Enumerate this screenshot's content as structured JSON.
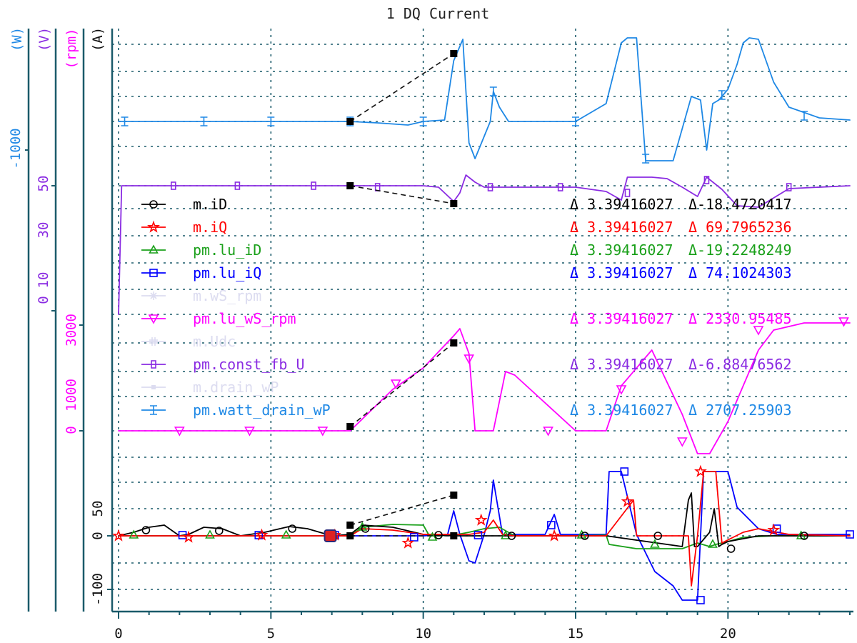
{
  "chart_data": {
    "type": "line",
    "title": "1 DQ Current",
    "x_ticks": [
      0,
      5,
      10,
      15,
      20
    ],
    "xlim": [
      0,
      24
    ],
    "grid": true,
    "axes": [
      {
        "unit": "(W)",
        "color": "#1e88e5",
        "tick_labels": [
          "-1000"
        ]
      },
      {
        "unit": "(V)",
        "color": "#8a2be2",
        "tick_labels": [
          "0",
          "10",
          "30",
          "50"
        ]
      },
      {
        "unit": "(rpm)",
        "color": "#ff00ff",
        "tick_labels": [
          "0",
          "1000",
          "3000"
        ]
      },
      {
        "unit": "(A)",
        "color": "#111111",
        "tick_labels": [
          "-100",
          "0",
          "50"
        ]
      }
    ],
    "legend": [
      {
        "name": "m.iD",
        "color": "#000000",
        "marker": "circle",
        "dx": "Δ 3.39416027",
        "dy": "Δ-18.4720417",
        "active": true
      },
      {
        "name": "m.iQ",
        "color": "#ff0000",
        "marker": "star",
        "dx": "Δ 3.39416027",
        "dy": "Δ 69.7965236",
        "active": true
      },
      {
        "name": "pm.lu_iD",
        "color": "#1aa01a",
        "marker": "triangle-up",
        "dx": "Δ 3.39416027",
        "dy": "Δ-19.2248249",
        "active": true
      },
      {
        "name": "pm.lu_iQ",
        "color": "#0000ff",
        "marker": "square",
        "dx": "Δ 3.39416027",
        "dy": "Δ 74.1024303",
        "active": true
      },
      {
        "name": "m.wS_rpm",
        "color": "#dcdcf0",
        "marker": "asterisk",
        "dx": "",
        "dy": "",
        "active": false
      },
      {
        "name": "pm.lu_wS_rpm",
        "color": "#ff00ff",
        "marker": "triangle-down",
        "dx": "Δ 3.39416027",
        "dy": "Δ 2330.95485",
        "active": true
      },
      {
        "name": "m.Udc",
        "color": "#dcdcf0",
        "marker": "hash",
        "dx": "",
        "dy": "",
        "active": false
      },
      {
        "name": "pm.const_fb_U",
        "color": "#8a2be2",
        "marker": "square-bar",
        "dx": "Δ 3.39416027",
        "dy": "Δ-6.88476562",
        "active": true
      },
      {
        "name": "m.drain_wP",
        "color": "#dcdcf0",
        "marker": "dot",
        "dx": "",
        "dy": "",
        "active": false
      },
      {
        "name": "pm.watt_drain_wP",
        "color": "#1e88e5",
        "marker": "errorbar",
        "dx": "Δ 3.39416027",
        "dy": "Δ 2707.25903",
        "active": true
      }
    ],
    "series": [
      {
        "name": "pm.watt_drain_wP",
        "x": [
          0,
          7.6,
          8.5,
          9.5,
          10,
          10.7,
          11,
          11.3,
          11.5,
          11.7,
          12.2,
          12.3,
          12.5,
          12.8,
          15,
          16,
          16.5,
          16.7,
          17,
          17.3,
          18.2,
          18.8,
          19.1,
          19.3,
          19.5,
          19.7,
          20,
          20.3,
          20.5,
          20.7,
          21,
          21.5,
          22,
          23,
          24
        ],
        "y": [
          170,
          170,
          172,
          175,
          170,
          168,
          85,
          55,
          200,
          222,
          170,
          128,
          150,
          170,
          170,
          145,
          60,
          53,
          53,
          225,
          225,
          135,
          140,
          210,
          145,
          140,
          125,
          90,
          60,
          53,
          55,
          115,
          150,
          165,
          168
        ]
      },
      {
        "name": "pm.const_fb_U",
        "x": [
          0,
          0.1,
          7.6,
          10,
          10.5,
          11,
          11.2,
          11.4,
          11.7,
          12,
          15,
          16,
          16.5,
          16.7,
          17.5,
          18,
          18.5,
          19,
          19.3,
          19.8,
          20.3,
          21,
          22,
          24
        ],
        "y": [
          440,
          260,
          260,
          260,
          262,
          282,
          270,
          245,
          255,
          262,
          262,
          268,
          280,
          248,
          248,
          250,
          262,
          275,
          248,
          265,
          288,
          290,
          264,
          260
        ]
      },
      {
        "name": "pm.lu_wS_rpm",
        "x": [
          0,
          7.6,
          9,
          10,
          11,
          11.2,
          11.5,
          11.7,
          12.3,
          12.7,
          13,
          15,
          16,
          16.5,
          17.5,
          18.5,
          19,
          19.4,
          20,
          21,
          21.5,
          22.5,
          24
        ],
        "y": [
          603,
          603,
          545,
          515,
          470,
          460,
          495,
          603,
          603,
          520,
          525,
          603,
          603,
          540,
          490,
          580,
          635,
          635,
          590,
          490,
          462,
          452,
          452
        ]
      },
      {
        "name": "pm.lu_iQ",
        "x": [
          0,
          7.5,
          9.8,
          10,
          10.8,
          11,
          11.2,
          11.5,
          11.7,
          12,
          12.2,
          12.3,
          12.6,
          14,
          14.3,
          14.5,
          16,
          16.1,
          16.5,
          17,
          17.6,
          18.2,
          18.5,
          18.8,
          19,
          19.2,
          20,
          20.3,
          21,
          21.6,
          22,
          24
        ],
        "y": [
          750,
          750,
          750,
          750,
          748,
          715,
          748,
          785,
          788,
          748,
          715,
          672,
          748,
          748,
          720,
          748,
          748,
          660,
          660,
          748,
          800,
          820,
          840,
          840,
          840,
          660,
          660,
          710,
          740,
          748,
          748,
          748
        ]
      },
      {
        "name": "pm.lu_iD",
        "x": [
          0,
          7.6,
          8,
          9,
          10,
          10.2,
          10.5,
          11,
          11.5,
          12,
          12.5,
          13,
          15,
          16,
          16.1,
          17,
          18,
          18.5,
          19,
          19.4,
          19.6,
          20,
          20.5,
          21.5,
          22,
          24
        ],
        "y": [
          750,
          750,
          738,
          734,
          735,
          750,
          750,
          749,
          745,
          740,
          738,
          750,
          750,
          749,
          762,
          768,
          768,
          768,
          760,
          765,
          762,
          758,
          752,
          750,
          750,
          750
        ]
      },
      {
        "name": "m.iD",
        "x": [
          0,
          0.5,
          1,
          1.5,
          2,
          2.3,
          2.8,
          3.4,
          4,
          4.8,
          5.6,
          6.2,
          7,
          7.6,
          8,
          9,
          10,
          11,
          12,
          16,
          18.5,
          18.7,
          18.8,
          18.9,
          19,
          19.4,
          19.55,
          19.7,
          19.8,
          20,
          21,
          24
        ],
        "y": [
          750,
          745,
          738,
          735,
          750,
          748,
          738,
          740,
          750,
          745,
          737,
          740,
          750,
          748,
          735,
          738,
          748,
          750,
          750,
          750,
          765,
          700,
          690,
          765,
          765,
          745,
          712,
          765,
          762,
          758,
          750,
          750
        ]
      },
      {
        "name": "m.iQ",
        "x": [
          0,
          7.6,
          8,
          9,
          10,
          11,
          11.5,
          12,
          12.3,
          12.6,
          13,
          16,
          16.9,
          17,
          17.5,
          18.7,
          18.8,
          19,
          19.2,
          19.3,
          19.6,
          19.8,
          20.5,
          21,
          22,
          24
        ],
        "y": [
          750,
          750,
          740,
          742,
          748,
          748,
          748,
          745,
          728,
          748,
          750,
          750,
          700,
          750,
          750,
          750,
          820,
          750,
          660,
          660,
          660,
          760,
          745,
          740,
          748,
          750
        ]
      }
    ],
    "markers": [
      {
        "series": "pm.watt_drain_wP",
        "x": [
          0.2,
          2.8,
          5,
          7.6,
          10,
          12.3,
          15,
          17.3,
          19.8,
          22.5
        ],
        "y": [
          170,
          170,
          170,
          170,
          170,
          128,
          170,
          222,
          133,
          162
        ]
      },
      {
        "series": "pm.const_fb_U",
        "x": [
          1.8,
          3.9,
          6.4,
          8.5,
          12.2,
          14.5,
          16.7,
          19.3,
          22
        ],
        "y": [
          260,
          260,
          260,
          262,
          262,
          262,
          270,
          252,
          262
        ]
      },
      {
        "series": "pm.lu_wS_rpm",
        "x": [
          2,
          4.3,
          6.7,
          9.1,
          11.5,
          14.1,
          16.5,
          18.5,
          21,
          23.8
        ],
        "y": [
          603,
          603,
          603,
          537,
          502,
          603,
          545,
          618,
          462,
          450
        ]
      },
      {
        "series": "pm.lu_iQ",
        "x": [
          2.1,
          4.6,
          7.1,
          9.7,
          11.8,
          14.2,
          16.6,
          19.1,
          21.6,
          24
        ],
        "y": [
          749,
          749,
          749,
          752,
          749,
          735,
          660,
          840,
          740,
          748
        ]
      },
      {
        "series": "pm.lu_iD",
        "x": [
          0.5,
          3,
          5.5,
          8,
          10.3,
          12.7,
          15.2,
          17.6,
          19.5,
          22.4
        ],
        "y": [
          749,
          749,
          749,
          738,
          752,
          750,
          749,
          762,
          762,
          750
        ]
      },
      {
        "series": "m.iD",
        "x": [
          0.9,
          3.3,
          5.7,
          8.1,
          10.5,
          12.9,
          15.3,
          17.7,
          20.1,
          22.5
        ],
        "y": [
          742,
          743,
          740,
          740,
          749,
          750,
          750,
          750,
          768,
          750
        ]
      },
      {
        "series": "m.iQ",
        "x": [
          0,
          2.3,
          4.7,
          7.1,
          9.5,
          11.9,
          14.3,
          16.7,
          19.1,
          21.5
        ],
        "y": [
          750,
          752,
          749,
          749,
          760,
          728,
          750,
          702,
          660,
          742
        ]
      }
    ],
    "cursor_points": [
      [
        7.6,
        170
      ],
      [
        11,
        75
      ],
      [
        7.6,
        260
      ],
      [
        11,
        285
      ],
      [
        7.6,
        597
      ],
      [
        11,
        480
      ],
      [
        7.6,
        735
      ],
      [
        11,
        693
      ],
      [
        7.6,
        750
      ],
      [
        11,
        750
      ]
    ]
  }
}
